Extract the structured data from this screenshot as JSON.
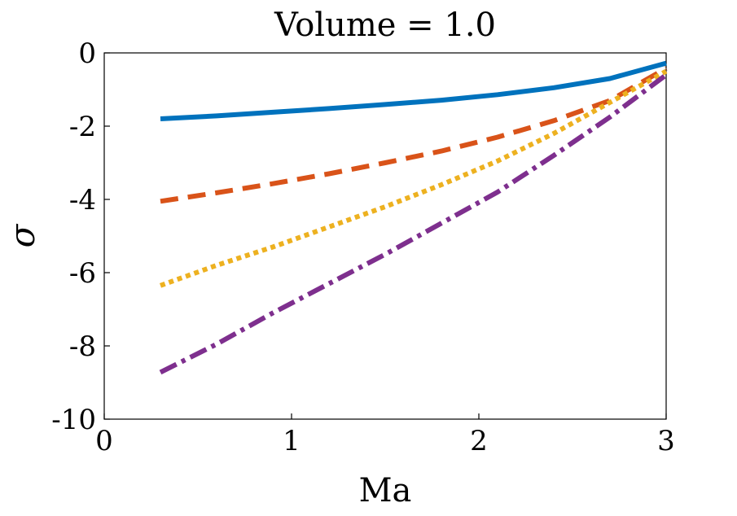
{
  "chart_data": {
    "type": "line",
    "title": "Volume = 1.0",
    "xlabel": "Ma",
    "ylabel": "σ",
    "xlim": [
      0,
      3
    ],
    "ylim": [
      -10,
      0
    ],
    "x_ticks": [
      "0",
      "1",
      "2",
      "3"
    ],
    "y_ticks": [
      "0",
      "-2",
      "-4",
      "-6",
      "-8",
      "-10"
    ],
    "grid": false,
    "x": [
      0.3,
      0.6,
      0.9,
      1.2,
      1.5,
      1.8,
      2.1,
      2.4,
      2.7,
      3.0
    ],
    "series": [
      {
        "color": "#0072BD",
        "style": "solid",
        "values": [
          -1.8,
          -1.72,
          -1.62,
          -1.52,
          -1.41,
          -1.29,
          -1.14,
          -0.95,
          -0.7,
          -0.28
        ]
      },
      {
        "color": "#D95319",
        "style": "dashed",
        "values": [
          -4.05,
          -3.82,
          -3.57,
          -3.3,
          -3.0,
          -2.68,
          -2.3,
          -1.85,
          -1.3,
          -0.42
        ]
      },
      {
        "color": "#EDB120",
        "style": "dotted",
        "values": [
          -6.35,
          -5.8,
          -5.3,
          -4.75,
          -4.2,
          -3.6,
          -2.95,
          -2.2,
          -1.35,
          -0.5
        ]
      },
      {
        "color": "#7E2F8E",
        "style": "dashdot",
        "values": [
          -8.72,
          -7.95,
          -7.1,
          -6.3,
          -5.5,
          -4.65,
          -3.8,
          -2.8,
          -1.75,
          -0.6
        ]
      }
    ]
  }
}
